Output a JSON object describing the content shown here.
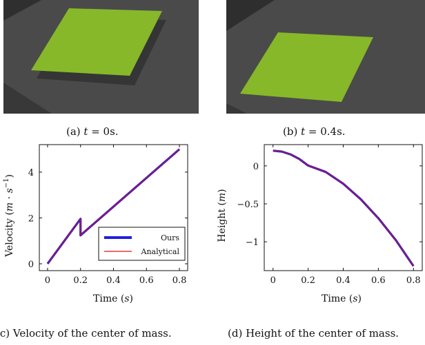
{
  "figure": {
    "panels": [
      {
        "caption_prefix": "(a) ",
        "caption_var": "t",
        "caption_rest": " = 0s.",
        "description_hidden": true
      },
      {
        "caption_prefix": "(b) ",
        "caption_var": "t",
        "caption_rest": " = 0.4s.",
        "description_hidden": true
      }
    ],
    "caption_c": "(c) Velocity of the center of mass.",
    "caption_d": "(d) Height of the center of mass.",
    "colors": {
      "ours": "#1f1fe0",
      "analytical": "#e01010",
      "plate": "#86b82a",
      "ground": "#4a4a4a",
      "groundDark": "#2e2e2e"
    }
  },
  "chart_data": [
    {
      "type": "line",
      "xlabel": "Time (s)",
      "ylabel": "Velocity (m · s⁻¹)",
      "xlim": [
        -0.05,
        0.85
      ],
      "ylim": [
        -0.3,
        5.2
      ],
      "xticks": [
        "0",
        "0.2",
        "0.4",
        "0.6",
        "0.8"
      ],
      "yticks": [
        "0",
        "2",
        "4"
      ],
      "legend": {
        "placement": "bottom-right",
        "entries": [
          "Ours",
          "Analytical"
        ]
      },
      "series": [
        {
          "name": "Ours",
          "x": [
            0,
            0.2,
            0.2,
            0.8
          ],
          "y": [
            0,
            1.96,
            1.24,
            5.0
          ]
        },
        {
          "name": "Analytical",
          "x": [
            0,
            0.2,
            0.2,
            0.8
          ],
          "y": [
            0,
            1.96,
            1.24,
            5.0
          ]
        }
      ]
    },
    {
      "type": "line",
      "xlabel": "Time (s)",
      "ylabel": "Height (m)",
      "xlim": [
        -0.05,
        0.85
      ],
      "ylim": [
        -1.38,
        0.28
      ],
      "xticks": [
        "0",
        "0.2",
        "0.4",
        "0.6",
        "0.8"
      ],
      "yticks": [
        "0",
        "−0.5",
        "−1"
      ],
      "series": [
        {
          "name": "Ours",
          "x": [
            0,
            0.05,
            0.1,
            0.15,
            0.2,
            0.3,
            0.4,
            0.5,
            0.6,
            0.7,
            0.8
          ],
          "y": [
            0.2,
            0.188,
            0.151,
            0.09,
            0.004,
            -0.08,
            -0.235,
            -0.44,
            -0.69,
            -0.98,
            -1.32
          ]
        },
        {
          "name": "Analytical",
          "x": [
            0,
            0.05,
            0.1,
            0.15,
            0.2,
            0.3,
            0.4,
            0.5,
            0.6,
            0.7,
            0.8
          ],
          "y": [
            0.2,
            0.188,
            0.151,
            0.09,
            0.004,
            -0.08,
            -0.235,
            -0.44,
            -0.69,
            -0.98,
            -1.32
          ]
        }
      ]
    }
  ]
}
